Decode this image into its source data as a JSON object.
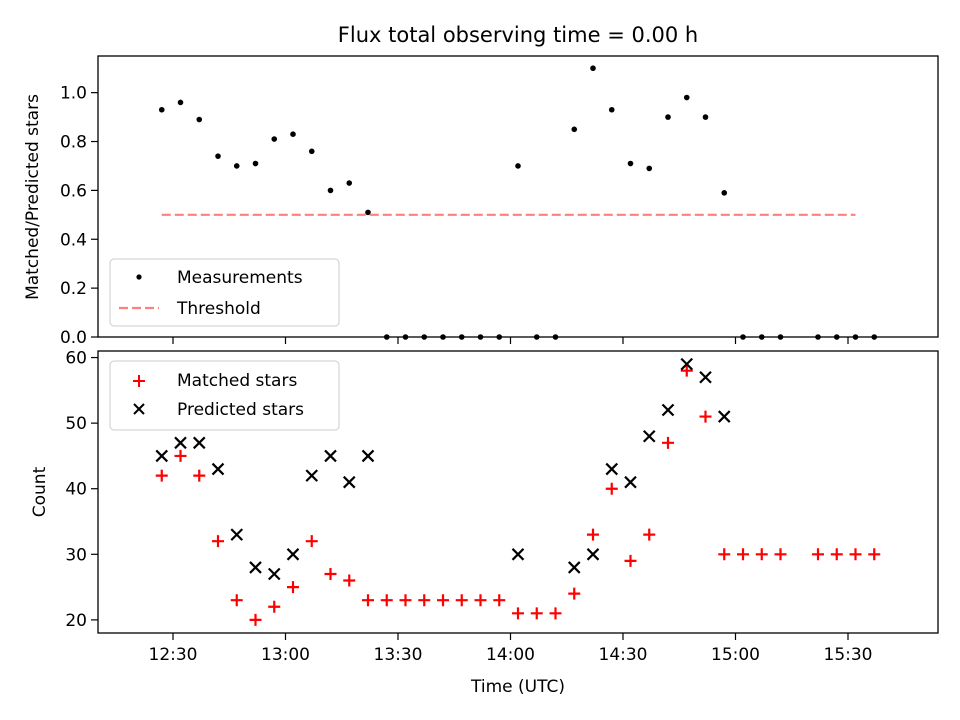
{
  "title": "Flux total observing time = 0.00 h",
  "chart_data": [
    {
      "type": "scatter",
      "ylabel": "Matched/Predicted stars",
      "ylim": [
        0,
        1.15
      ],
      "xlim": [
        "12:10",
        "15:54"
      ],
      "yticks": [
        0.0,
        0.2,
        0.4,
        0.6,
        0.8,
        1.0
      ],
      "ytick_labels": [
        "0.0",
        "0.2",
        "0.4",
        "0.6",
        "0.8",
        "1.0"
      ],
      "legend_position": "lower-left",
      "series": [
        {
          "name": "Measurements",
          "marker": "dot",
          "color": "#000000",
          "x": [
            "12:27",
            "12:32",
            "12:37",
            "12:42",
            "12:47",
            "12:52",
            "12:57",
            "13:02",
            "13:07",
            "13:12",
            "13:17",
            "13:22",
            "13:27",
            "13:32",
            "13:37",
            "13:42",
            "13:47",
            "13:52",
            "13:57",
            "14:02",
            "14:07",
            "14:12",
            "14:17",
            "14:22",
            "14:27",
            "14:32",
            "14:37",
            "14:42",
            "14:47",
            "14:52",
            "14:57",
            "15:02",
            "15:07",
            "15:12",
            "15:22",
            "15:27",
            "15:32",
            "15:37"
          ],
          "y": [
            0.93,
            0.96,
            0.89,
            0.74,
            0.7,
            0.71,
            0.81,
            0.83,
            0.76,
            0.6,
            0.63,
            0.51,
            0.0,
            0.0,
            0.0,
            0.0,
            0.0,
            0.0,
            0.0,
            0.7,
            0.0,
            0.0,
            0.85,
            1.1,
            0.93,
            0.71,
            0.69,
            0.9,
            0.98,
            0.9,
            0.59,
            0.0,
            0.0,
            0.0,
            0.0,
            0.0,
            0.0,
            0.0
          ]
        },
        {
          "name": "Threshold",
          "marker": "dashed-line",
          "color": "#ff7f7f",
          "x": [
            "12:27",
            "15:32"
          ],
          "y": [
            0.5,
            0.5
          ]
        }
      ]
    },
    {
      "type": "scatter",
      "ylabel": "Count",
      "xlabel": "Time (UTC)",
      "ylim": [
        18,
        61
      ],
      "yticks": [
        20,
        30,
        40,
        50,
        60
      ],
      "ytick_labels": [
        "20",
        "30",
        "40",
        "50",
        "60"
      ],
      "xticks": [
        "12:30",
        "13:00",
        "13:30",
        "14:00",
        "14:30",
        "15:00",
        "15:30"
      ],
      "xtick_labels": [
        "12:30",
        "13:00",
        "13:30",
        "14:00",
        "14:30",
        "15:00",
        "15:30"
      ],
      "legend_position": "upper-left",
      "series": [
        {
          "name": "Matched stars",
          "marker": "plus",
          "color": "#ff0000",
          "x": [
            "12:27",
            "12:32",
            "12:37",
            "12:42",
            "12:47",
            "12:52",
            "12:57",
            "13:02",
            "13:07",
            "13:12",
            "13:17",
            "13:22",
            "13:27",
            "13:32",
            "13:37",
            "13:42",
            "13:47",
            "13:52",
            "13:57",
            "14:02",
            "14:07",
            "14:12",
            "14:17",
            "14:22",
            "14:27",
            "14:32",
            "14:37",
            "14:42",
            "14:47",
            "14:52",
            "14:57",
            "15:02",
            "15:07",
            "15:12",
            "15:22",
            "15:27",
            "15:32",
            "15:37"
          ],
          "y": [
            42,
            45,
            42,
            32,
            23,
            20,
            22,
            25,
            32,
            27,
            26,
            23,
            23,
            23,
            23,
            23,
            23,
            23,
            23,
            21,
            21,
            21,
            24,
            33,
            40,
            29,
            33,
            47,
            58,
            51,
            30,
            30,
            30,
            30,
            30,
            30,
            30,
            30
          ]
        },
        {
          "name": "Predicted stars",
          "marker": "x",
          "color": "#000000",
          "x": [
            "12:27",
            "12:32",
            "12:37",
            "12:42",
            "12:47",
            "12:52",
            "12:57",
            "13:02",
            "13:07",
            "13:12",
            "13:17",
            "13:22",
            "14:02",
            "14:17",
            "14:22",
            "14:27",
            "14:32",
            "14:37",
            "14:42",
            "14:47",
            "14:52",
            "14:57"
          ],
          "y": [
            45,
            47,
            47,
            43,
            33,
            28,
            27,
            30,
            42,
            45,
            41,
            45,
            30,
            28,
            30,
            43,
            41,
            48,
            52,
            59,
            57,
            51
          ]
        }
      ]
    }
  ]
}
